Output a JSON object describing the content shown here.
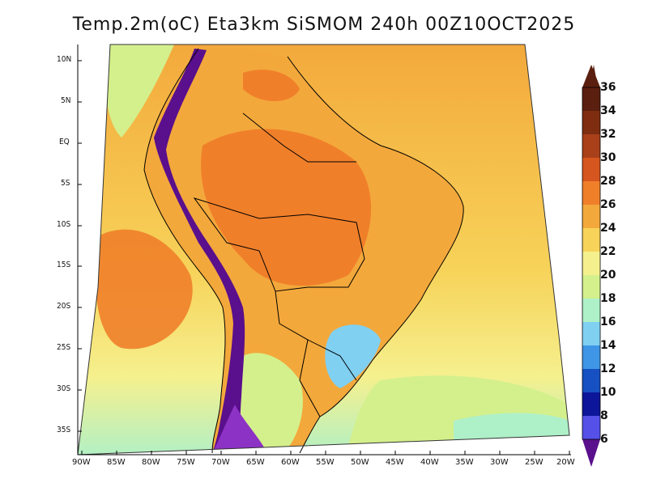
{
  "title": "Temp.2m(oC) Eta3km SiSMOM 240h 00Z10OCT2025",
  "lat_labels": [
    "10N",
    "5N",
    "EQ",
    "5S",
    "10S",
    "15S",
    "20S",
    "25S",
    "30S",
    "35S"
  ],
  "lon_labels": [
    "90W",
    "85W",
    "80W",
    "75W",
    "70W",
    "65W",
    "60W",
    "55W",
    "50W",
    "45W",
    "40W",
    "35W",
    "30W",
    "25W",
    "20W"
  ],
  "colorbar": {
    "labels": [
      "36",
      "34",
      "32",
      "30",
      "28",
      "26",
      "24",
      "22",
      "20",
      "18",
      "16",
      "14",
      "12",
      "10",
      "8",
      "6"
    ],
    "colors": [
      "#5a1f0f",
      "#7f2d10",
      "#a8401a",
      "#d6561f",
      "#f07f2a",
      "#f3a83b",
      "#f7d35a",
      "#f5f08e",
      "#d4f08c",
      "#aef0c8",
      "#80d0f2",
      "#3f96e6",
      "#1650c2",
      "#0d169a",
      "#5550e8",
      "#8c32c4",
      "#5a0f8c"
    ]
  },
  "map_colors": {
    "ocean_warm": "#f3a83b",
    "ocean_mid": "#f7d35a",
    "ocean_cool": "#d4f08c",
    "land_hot": "#f07f2a",
    "andes": "#5a0f8c",
    "south_cool": "#80d0f2"
  }
}
